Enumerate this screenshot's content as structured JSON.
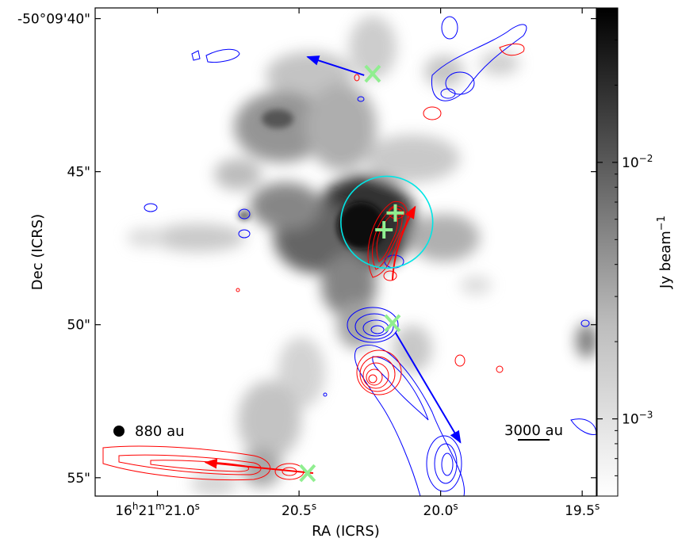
{
  "chart_data": {
    "type": "image",
    "xlabel": "RA (ICRS)",
    "ylabel": "Dec (ICRS)",
    "xlim_sec": [
      21.22,
      19.45
    ],
    "ylim_arcsec": [
      55.6,
      39.65
    ],
    "x_ticks": [
      {
        "value": 21.0,
        "label": "16h21m21.0s"
      },
      {
        "value": 20.5,
        "label": "20.5s"
      },
      {
        "value": 20.0,
        "label": "20.0s"
      },
      {
        "value": 19.5,
        "label": "19.5s"
      }
    ],
    "y_ticks": [
      {
        "value": 40,
        "label": "-50°09'40\""
      },
      {
        "value": 45,
        "label": "45\""
      },
      {
        "value": 50,
        "label": "50\""
      },
      {
        "value": 55,
        "label": "55\""
      }
    ],
    "colorbar": {
      "label": "Jy beam−1",
      "scale": "log",
      "range": [
        0.0005,
        0.04
      ],
      "ticks": [
        {
          "value": 0.01,
          "label": "10−2"
        },
        {
          "value": 0.001,
          "label": "10−3"
        }
      ]
    },
    "markers_x": [
      {
        "ra": 20.24,
        "dec": 41.8
      },
      {
        "ra": 20.17,
        "dec": 49.95
      },
      {
        "ra": 20.47,
        "dec": 54.85
      }
    ],
    "markers_plus": [
      {
        "ra": 20.16,
        "dec": 46.35
      },
      {
        "ra": 20.2,
        "dec": 46.9
      }
    ],
    "circle": {
      "ra": 20.19,
      "dec": 46.65,
      "radius_arcsec": 1.5
    },
    "outflow_arrows": [
      {
        "color": "blue",
        "from": [
          20.27,
          41.85
        ],
        "to": [
          20.47,
          41.25
        ]
      },
      {
        "color": "red",
        "from": [
          20.45,
          54.85
        ],
        "to": [
          20.83,
          54.5
        ]
      },
      {
        "color": "blue",
        "from": [
          20.16,
          50.25
        ],
        "to": [
          19.93,
          53.85
        ]
      },
      {
        "color": "red",
        "from": [
          20.17,
          48.55
        ],
        "to": [
          20.09,
          46.15
        ]
      }
    ],
    "beam_label": "880 au",
    "scale_bar_label": "3000 au",
    "scale_bar_arcsec": 1.0,
    "colors": {
      "red": "#ff0000",
      "blue": "#0000ff",
      "marker": "#90ee90",
      "circle": "#00e5e5"
    }
  }
}
